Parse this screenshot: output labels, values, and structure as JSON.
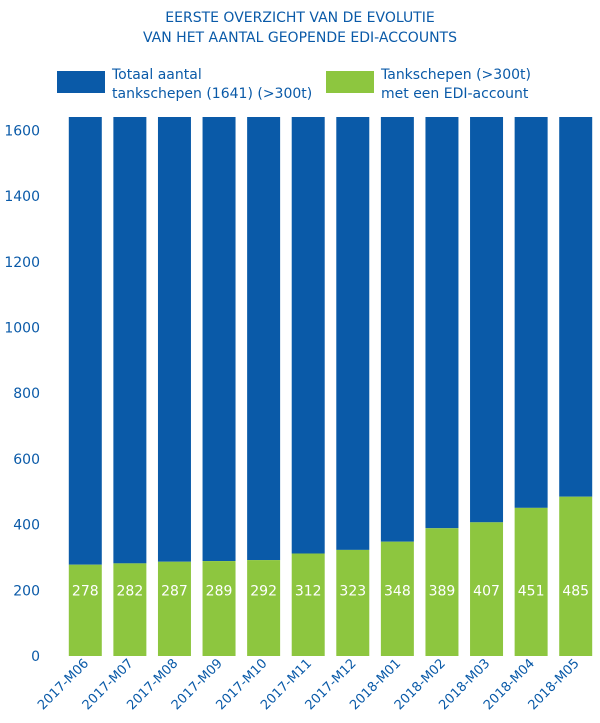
{
  "chart_data": {
    "type": "bar",
    "stacked": true,
    "title_lines": [
      "EERSTE OVERZICHT VAN DE EVOLUTIE",
      "VAN HET AANTAL GEOPENDE EDI-ACCOUNTS"
    ],
    "categories": [
      "2017-M06",
      "2017-M07",
      "2017-M08",
      "2017-M09",
      "2017-M10",
      "2017-M11",
      "2017-M12",
      "2018-M01",
      "2018-M02",
      "2018-M03",
      "2018-M04",
      "2018-M05"
    ],
    "series": [
      {
        "name": "Tankschepen (>300t) met een EDI-account",
        "legend_lines": [
          "Tankschepen (>300t)",
          "met een EDI-account"
        ],
        "color": "#8dc63f",
        "values": [
          278,
          282,
          287,
          289,
          292,
          312,
          323,
          348,
          389,
          407,
          451,
          485
        ]
      },
      {
        "name": "Totaal aantal tankschepen (1641) (>300t)",
        "legend_lines": [
          "Totaal aantal",
          "tankschepen (1641) (>300t)"
        ],
        "color": "#0a5aa8",
        "total": 1641
      }
    ],
    "yticks": [
      "0",
      "200",
      "400",
      "600",
      "800",
      "1000",
      "1200",
      "1400",
      "1600"
    ],
    "ylim": [
      0,
      1650
    ],
    "grid": false,
    "legend_position": "top"
  }
}
